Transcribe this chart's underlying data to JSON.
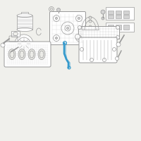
{
  "bg_color": "#f0f0ec",
  "line_color": "#999999",
  "dark_line": "#888888",
  "highlight_color": "#3399cc",
  "figsize": [
    2.0,
    2.0
  ],
  "dpi": 100
}
